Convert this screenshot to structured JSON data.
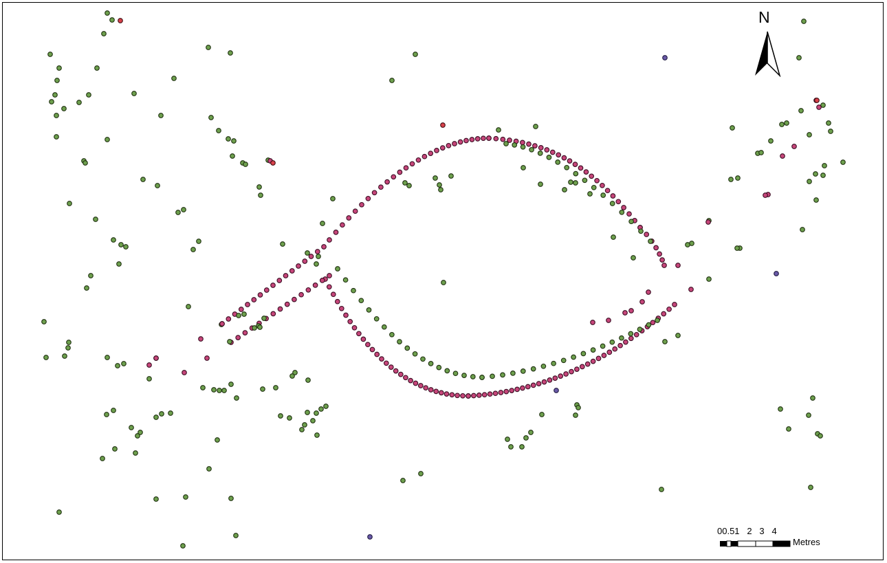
{
  "north_arrow": {
    "label": "N",
    "icon": "north-arrow-icon"
  },
  "scale_bar": {
    "ticks": "00.51   2   3   4",
    "units": "Metres",
    "divisions": [
      0,
      0.5,
      1,
      2,
      3,
      4
    ]
  },
  "point_styles": {
    "green": {
      "fill": "#6ea04e",
      "stroke": "#1f3010"
    },
    "pink": {
      "fill": "#c6467a",
      "stroke": "#3a0d22"
    },
    "red": {
      "fill": "#d8414a",
      "stroke": "#3e0e12"
    },
    "purple": {
      "fill": "#6a5aa8",
      "stroke": "#1f1a40"
    }
  }
}
